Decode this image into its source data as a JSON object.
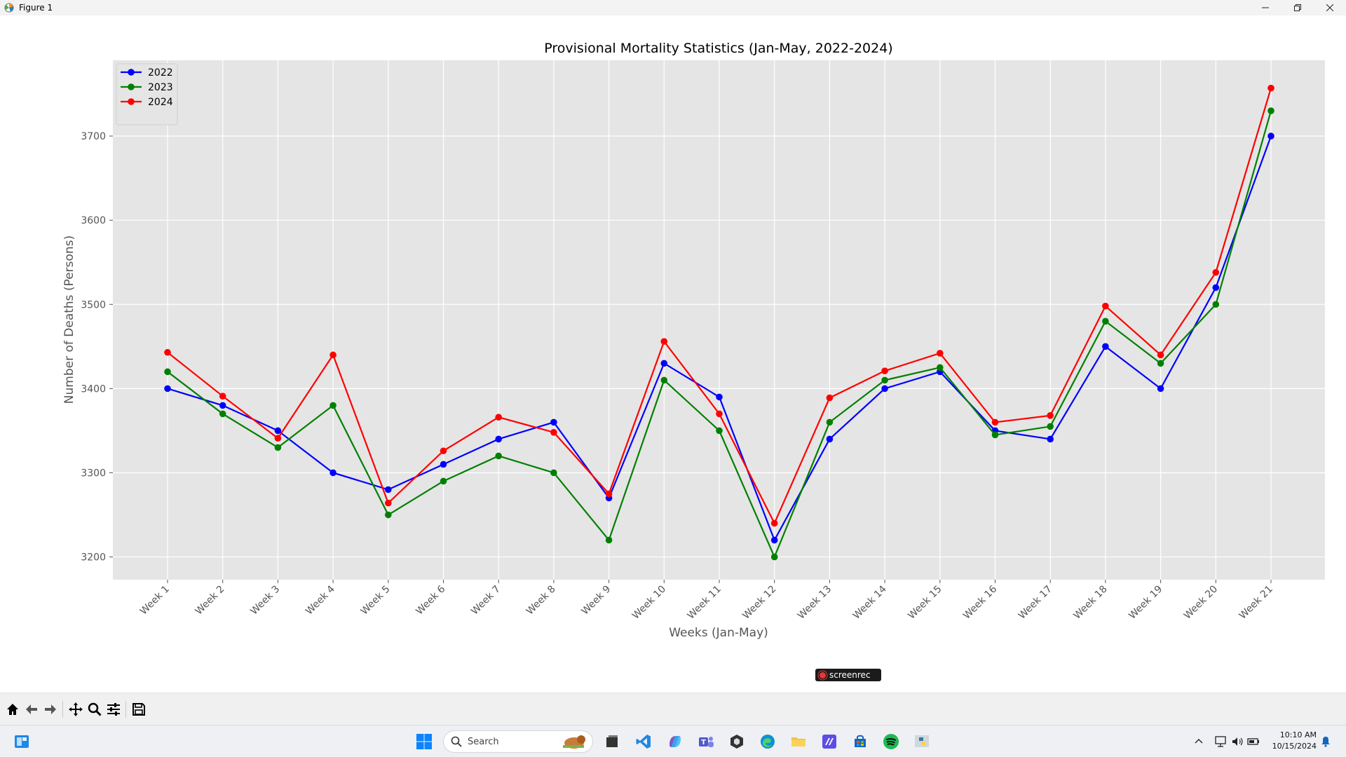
{
  "window": {
    "title": "Figure 1",
    "minimize_icon": "minimize-icon",
    "restore_icon": "restore-icon",
    "close_icon": "close-icon"
  },
  "chart_data": {
    "type": "line",
    "title": "Provisional Mortality Statistics (Jan-May, 2022-2024)",
    "xlabel": "Weeks (Jan-May)",
    "ylabel": "Number of Deaths (Persons)",
    "categories": [
      "Week 1",
      "Week 2",
      "Week 3",
      "Week 4",
      "Week 5",
      "Week 6",
      "Week 7",
      "Week 8",
      "Week 9",
      "Week 10",
      "Week 11",
      "Week 12",
      "Week 13",
      "Week 14",
      "Week 15",
      "Week 16",
      "Week 17",
      "Week 18",
      "Week 19",
      "Week 20",
      "Week 21"
    ],
    "yticks": [
      3200,
      3300,
      3400,
      3500,
      3600,
      3700
    ],
    "ylim": [
      3173,
      3790
    ],
    "grid": true,
    "legend_position": "upper-left",
    "marker": "circle",
    "series": [
      {
        "name": "2022",
        "color": "#0000ff",
        "values": [
          3400,
          3380,
          3350,
          3300,
          3280,
          3310,
          3340,
          3360,
          3270,
          3430,
          3390,
          3220,
          3340,
          3400,
          3420,
          3350,
          3340,
          3450,
          3400,
          3520,
          3700
        ]
      },
      {
        "name": "2023",
        "color": "#008000",
        "values": [
          3420,
          3370,
          3330,
          3380,
          3250,
          3290,
          3320,
          3300,
          3220,
          3410,
          3350,
          3200,
          3360,
          3410,
          3425,
          3345,
          3355,
          3480,
          3430,
          3500,
          3730
        ]
      },
      {
        "name": "2024",
        "color": "#ff0000",
        "values": [
          3443,
          3391,
          3341,
          3440,
          3264,
          3326,
          3366,
          3348,
          3275,
          3456,
          3370,
          3240,
          3389,
          3421,
          3442,
          3360,
          3368,
          3498,
          3440,
          3538,
          3757
        ]
      }
    ]
  },
  "toolbar": {
    "items": [
      "home-icon",
      "back-icon",
      "forward-icon",
      "pan-icon",
      "zoom-icon",
      "configure-subplots-icon",
      "save-icon"
    ]
  },
  "taskbar": {
    "search_label": "Search",
    "time": "10:10 AM",
    "date": "10/15/2024"
  },
  "overlay": {
    "screenrec_label": "screenrec"
  }
}
